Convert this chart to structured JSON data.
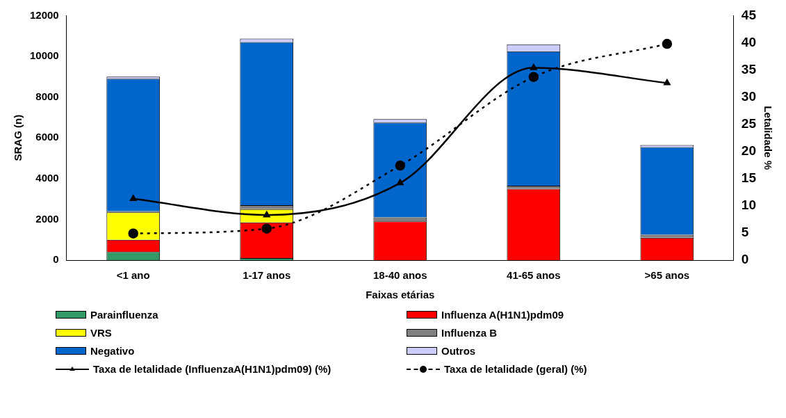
{
  "chart_data": {
    "type": "bar",
    "stacked": true,
    "xlabel": "Faixas etárias",
    "ylabel": "SRAG (n)",
    "y2label": "Letalidade %",
    "categories": [
      "<1 ano",
      "1-17 anos",
      "18-40 anos",
      "41-65 anos",
      ">65 anos"
    ],
    "ylim": [
      0,
      12000
    ],
    "yticks": [
      0,
      2000,
      4000,
      6000,
      8000,
      10000,
      12000
    ],
    "y2lim": [
      0,
      45
    ],
    "y2ticks": [
      0,
      5,
      10,
      15,
      20,
      25,
      30,
      35,
      40,
      45
    ],
    "grid": false,
    "legend": "bottom",
    "series": [
      {
        "name": "Parainfluenza",
        "color": "#339966",
        "values": [
          400,
          100,
          null,
          null,
          null
        ]
      },
      {
        "name": "Influenza A(H1N1)pdm09",
        "color": "#ff0000",
        "values": [
          600,
          1750,
          1900,
          3500,
          1100
        ]
      },
      {
        "name": "VRS",
        "color": "#ffff00",
        "values": [
          1350,
          650,
          null,
          null,
          null
        ]
      },
      {
        "name": "Influenza B",
        "color": "#808080",
        "values": [
          50,
          200,
          200,
          150,
          150
        ]
      },
      {
        "name": "Negativo",
        "color": "#0066cc",
        "values": [
          6500,
          8000,
          4650,
          6600,
          4300
        ]
      },
      {
        "name": "Outros",
        "color": "#ccccff",
        "values": [
          100,
          170,
          170,
          340,
          100
        ]
      },
      {
        "name": "Taxa de letalidade (InfluenzaA(H1N1)pdm09) (%)",
        "type": "line",
        "axis": "y2",
        "color": "#000000",
        "marker": "triangle",
        "line_style": "solid",
        "values": [
          11.3,
          8.3,
          14.2,
          35.4,
          32.6
        ]
      },
      {
        "name": "Taxa de letalidade (geral) (%)",
        "type": "line",
        "axis": "y2",
        "color": "#000000",
        "marker": "circle",
        "line_style": "dashed",
        "values": [
          4.9,
          5.8,
          17.4,
          33.7,
          39.8
        ]
      }
    ]
  }
}
